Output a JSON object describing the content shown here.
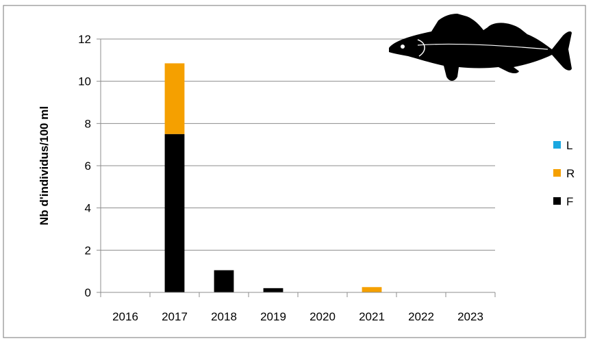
{
  "chart_data": {
    "type": "bar",
    "stacked": true,
    "categories": [
      "2016",
      "2017",
      "2018",
      "2019",
      "2020",
      "2021",
      "2022",
      "2023"
    ],
    "series": [
      {
        "name": "F",
        "color": "#000000",
        "values": [
          0,
          7.5,
          1.05,
          0.2,
          0,
          0,
          0,
          0
        ]
      },
      {
        "name": "R",
        "color": "#F5A000",
        "values": [
          0,
          3.35,
          0,
          0,
          0,
          0.25,
          0,
          0
        ]
      },
      {
        "name": "L",
        "color": "#1BA7E0",
        "values": [
          0,
          0,
          0,
          0,
          0,
          0,
          0,
          0
        ]
      }
    ],
    "ylabel": "Nb d'individus/100 ml",
    "ylim": [
      0,
      12
    ],
    "yticks": [
      "0",
      "2",
      "4",
      "6",
      "8",
      "10",
      "12"
    ],
    "grid": true,
    "legend_position": "right",
    "legend_order": [
      "L",
      "R",
      "F"
    ],
    "decoration_icon": "fish-silhouette-icon"
  }
}
